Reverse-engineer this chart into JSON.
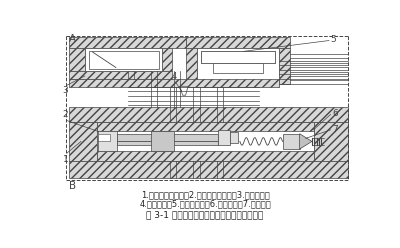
{
  "title": "图 3-1 压力反馈式液压冲击器基本原理结构图",
  "caption_line1": "1.配流阀操向阀芯；2.配流阀操向阀体；3.冲击器机体",
  "caption_line2": "4.冲击活塞；5.高压蓄能器；6.先导阀体；7.先导阀芯",
  "line_color": "#444444",
  "hatch_fc": "#d8d8d8",
  "label_A": "A",
  "label_B": "B",
  "font_size_caption": 6.0,
  "font_size_title": 6.5,
  "font_size_label": 7.5
}
